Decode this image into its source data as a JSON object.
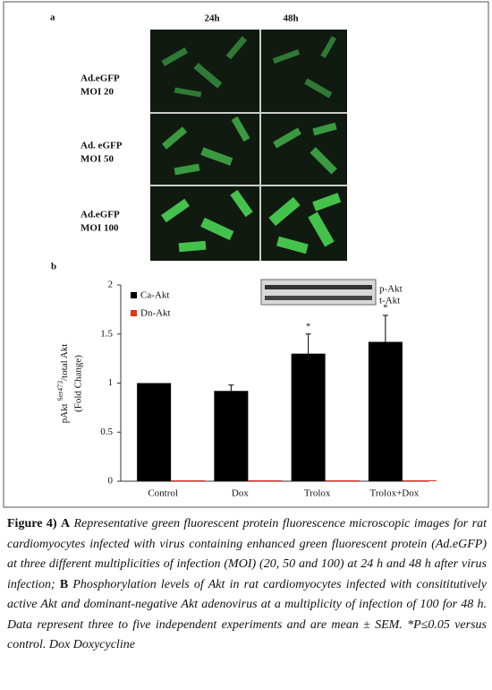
{
  "panel_a": {
    "label": "a",
    "columns": [
      "24h",
      "48h"
    ],
    "rows": [
      [
        "Ad.eGFP",
        "MOI 20"
      ],
      [
        "Ad. eGFP",
        "MOI 50"
      ],
      [
        "Ad.eGFP",
        "MOI 100"
      ]
    ]
  },
  "chart_data": {
    "type": "bar",
    "panel_label": "b",
    "y_label": [
      "pAkt ",
      "Ser473",
      "/total Akt",
      "(Fold Change)"
    ],
    "categories": [
      "Control",
      "Dox",
      "Trolox",
      "Trolox+Dox"
    ],
    "series": [
      {
        "name": "Ca-Akt",
        "color": "#000000",
        "values": [
          1.0,
          0.92,
          1.3,
          1.42
        ],
        "errors": [
          null,
          0.06,
          0.2,
          0.27
        ]
      },
      {
        "name": "Dn-Akt",
        "color": "#e8321e",
        "values": [
          0.01,
          0.01,
          0.01,
          0.01
        ]
      }
    ],
    "significance_labels": [
      null,
      null,
      "*",
      "*"
    ],
    "ylim": [
      0,
      2
    ],
    "yticks": [
      0,
      0.5,
      1,
      1.5,
      2
    ],
    "blot_labels": [
      "p-Akt",
      "t-Akt"
    ]
  },
  "caption": {
    "figure_label": "Figure 4)",
    "a_label": "A",
    "a_text": "Representative green fluorescent protein fluorescence microscopic images for rat cardiomyocytes infected with virus containing enhanced green fluorescent protein (Ad.eGFP) at three different multiplicities of infection (MOI) (20, 50 and 100) at 24 h and 48 h after virus infection;",
    "b_label": "B",
    "b_text": "Phosphorylation levels of Akt in rat cardiomyocytes infected with consititutively active Akt and dominant-negative Akt adenovirus at a multiplicity of infection of 100 for 48 h. Data represent three to five independent experiments and are mean ± SEM. *P≤0.05 versus control. Dox Doxycycline"
  }
}
